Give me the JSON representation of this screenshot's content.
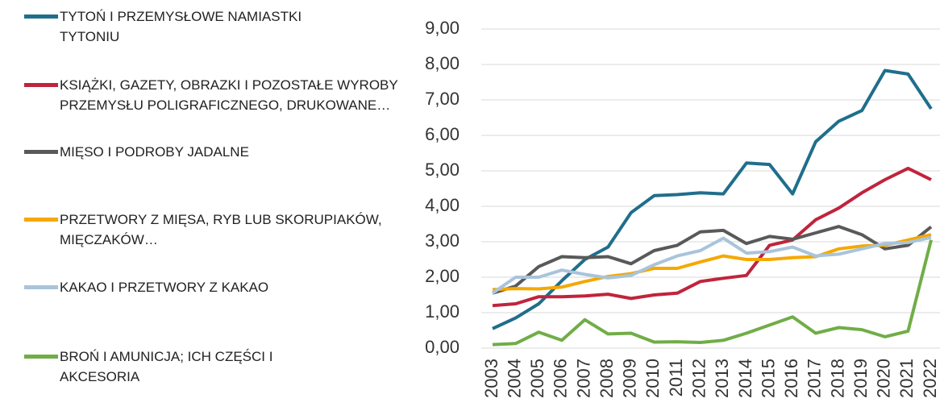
{
  "chart_data": {
    "type": "line",
    "categories": [
      "2003",
      "2004",
      "2005",
      "2006",
      "2007",
      "2008",
      "2009",
      "2010",
      "2011",
      "2012",
      "2013",
      "2014",
      "2015",
      "2016",
      "2017",
      "2018",
      "2019",
      "2020",
      "2021",
      "2022"
    ],
    "ylim": [
      0,
      9
    ],
    "yticks": [
      {
        "value": 0,
        "label": "0,00"
      },
      {
        "value": 1,
        "label": "1,00"
      },
      {
        "value": 2,
        "label": "2,00"
      },
      {
        "value": 3,
        "label": "3,00"
      },
      {
        "value": 4,
        "label": "4,00"
      },
      {
        "value": 5,
        "label": "5,00"
      },
      {
        "value": 6,
        "label": "6,00"
      },
      {
        "value": 7,
        "label": "7,00"
      },
      {
        "value": 8,
        "label": "8,00"
      },
      {
        "value": 9,
        "label": "9,00"
      }
    ],
    "grid": true,
    "legend": "left",
    "series": [
      {
        "name": "TYTOŃ I PRZEMYSŁOWE NAMIASTKI TYTONIU",
        "color": "#1f6e8c",
        "values": [
          0.55,
          0.85,
          1.25,
          1.9,
          2.5,
          2.85,
          3.82,
          4.3,
          4.33,
          4.38,
          4.35,
          5.22,
          5.18,
          4.35,
          5.82,
          6.4,
          6.7,
          7.83,
          7.73,
          6.75
        ]
      },
      {
        "name": "KSIĄŻKI, GAZETY, OBRAZKI I POZOSTAŁE WYROBY PRZEMYSŁU POLIGRAFICZNEGO, DRUKOWANE…",
        "color": "#c0243c",
        "values": [
          1.2,
          1.25,
          1.45,
          1.45,
          1.47,
          1.52,
          1.4,
          1.5,
          1.55,
          1.88,
          1.97,
          2.05,
          2.9,
          3.05,
          3.62,
          3.95,
          4.38,
          4.75,
          5.07,
          4.75
        ]
      },
      {
        "name": "MIĘSO I PODROBY JADALNE",
        "color": "#595959",
        "values": [
          1.55,
          1.75,
          2.3,
          2.58,
          2.55,
          2.58,
          2.38,
          2.75,
          2.9,
          3.28,
          3.32,
          2.95,
          3.15,
          3.07,
          3.25,
          3.43,
          3.2,
          2.8,
          2.9,
          3.42
        ]
      },
      {
        "name": "PRZETWORY Z MIĘSA, RYB LUB SKORUPIAKÓW, MIĘCZAKÓW…",
        "color": "#f5a800",
        "values": [
          1.65,
          1.68,
          1.67,
          1.72,
          1.88,
          2.02,
          2.1,
          2.25,
          2.25,
          2.43,
          2.6,
          2.5,
          2.5,
          2.55,
          2.58,
          2.8,
          2.88,
          2.9,
          3.05,
          3.2
        ]
      },
      {
        "name": "KAKAO I PRZETWORY Z KAKAO",
        "color": "#a9c4db",
        "values": [
          1.55,
          2.0,
          2.0,
          2.2,
          2.08,
          1.98,
          2.05,
          2.35,
          2.6,
          2.75,
          3.1,
          2.68,
          2.72,
          2.85,
          2.6,
          2.65,
          2.8,
          2.95,
          2.98,
          3.12
        ]
      },
      {
        "name": "BROŃ I AMUNICJA; ICH CZĘŚCI I AKCESORIA",
        "color": "#70ad47",
        "values": [
          0.1,
          0.13,
          0.45,
          0.22,
          0.8,
          0.4,
          0.42,
          0.17,
          0.18,
          0.16,
          0.22,
          0.42,
          0.65,
          0.88,
          0.42,
          0.58,
          0.52,
          0.32,
          0.48,
          3.05
        ]
      }
    ]
  }
}
